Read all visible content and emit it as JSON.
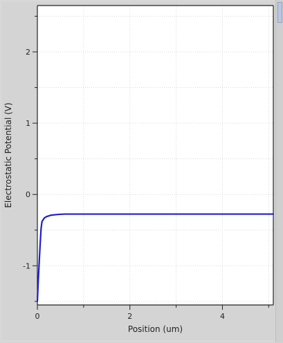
{
  "chart_data": {
    "type": "line",
    "title": "",
    "xlabel": "Position (um)",
    "ylabel": "Electrostatic Potential (V)",
    "xlim": [
      0,
      5.1
    ],
    "ylim": [
      -1.55,
      2.65
    ],
    "xticks": [
      0,
      2,
      4
    ],
    "yticks": [
      -1,
      0,
      1,
      2
    ],
    "grid": true,
    "legend": "none",
    "series": [
      {
        "color": "#1e1ed2",
        "points": [
          [
            0.0,
            -1.5
          ],
          [
            0.02,
            -1.2
          ],
          [
            0.04,
            -0.95
          ],
          [
            0.06,
            -0.7
          ],
          [
            0.08,
            -0.48
          ],
          [
            0.1,
            -0.38
          ],
          [
            0.15,
            -0.33
          ],
          [
            0.2,
            -0.31
          ],
          [
            0.3,
            -0.29
          ],
          [
            0.45,
            -0.28
          ],
          [
            0.6,
            -0.275
          ],
          [
            1.0,
            -0.275
          ],
          [
            2.0,
            -0.275
          ],
          [
            3.0,
            -0.275
          ],
          [
            4.0,
            -0.275
          ],
          [
            5.1,
            -0.275
          ]
        ]
      }
    ]
  }
}
